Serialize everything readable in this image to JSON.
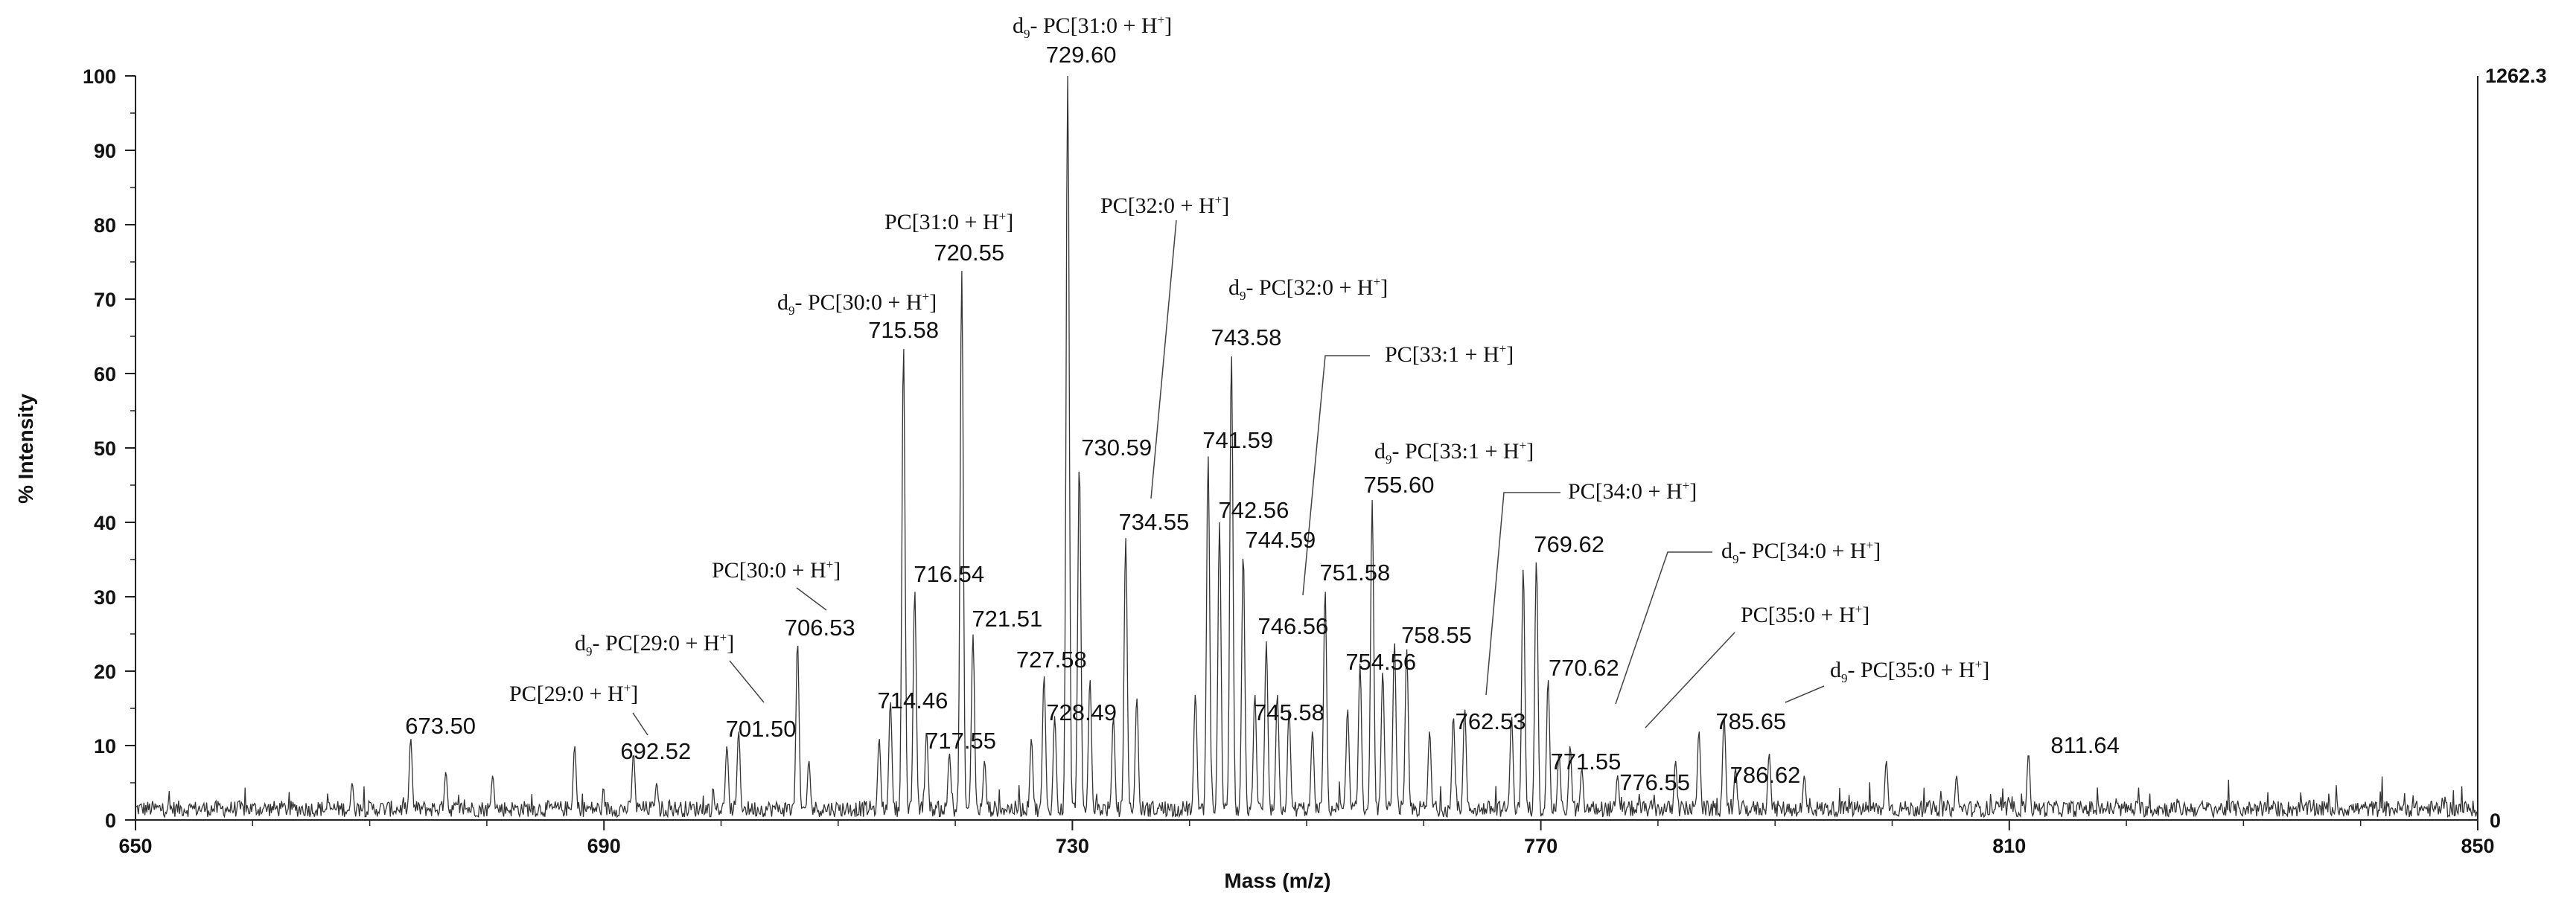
{
  "chart_data": {
    "type": "line",
    "subtype": "mass-spectrum",
    "title": "",
    "xlabel": "Mass (m/z)",
    "ylabel": "% Intensity",
    "xlim": [
      650,
      850
    ],
    "ylim": [
      0,
      100
    ],
    "x_ticks": [
      "650",
      "690",
      "730",
      "770",
      "810",
      "850"
    ],
    "y_ticks": [
      "0",
      "10",
      "20",
      "30",
      "40",
      "50",
      "60",
      "70",
      "80",
      "90",
      "100"
    ],
    "right_axis": {
      "max_label": "1262.3",
      "min_label": "0"
    },
    "line_color": "#333333",
    "grid": false,
    "peaks": [
      {
        "x": 673.5,
        "y": 11.0,
        "label": "673.50"
      },
      {
        "x": 692.52,
        "y": 9.0,
        "label": "692.52"
      },
      {
        "x": 701.5,
        "y": 12.0,
        "label": "701.50"
      },
      {
        "x": 706.53,
        "y": 24.0,
        "label": "706.53"
      },
      {
        "x": 714.46,
        "y": 16.0,
        "label": "714.46"
      },
      {
        "x": 715.58,
        "y": 64.0,
        "label": "715.58"
      },
      {
        "x": 716.54,
        "y": 31.0,
        "label": "716.54"
      },
      {
        "x": 717.55,
        "y": 12.0,
        "label": "717.55"
      },
      {
        "x": 720.55,
        "y": 74.0,
        "label": "720.55"
      },
      {
        "x": 721.51,
        "y": 25.0,
        "label": "721.51"
      },
      {
        "x": 727.58,
        "y": 19.5,
        "label": "727.58"
      },
      {
        "x": 728.49,
        "y": 14.0,
        "label": "728.49"
      },
      {
        "x": 729.6,
        "y": 100.0,
        "label": "729.60"
      },
      {
        "x": 730.59,
        "y": 48.0,
        "label": "730.59"
      },
      {
        "x": 734.55,
        "y": 38.0,
        "label": "734.55"
      },
      {
        "x": 741.59,
        "y": 49.0,
        "label": "741.59"
      },
      {
        "x": 742.56,
        "y": 40.0,
        "label": "742.56"
      },
      {
        "x": 743.58,
        "y": 63.0,
        "label": "743.58"
      },
      {
        "x": 744.59,
        "y": 36.0,
        "label": "744.59"
      },
      {
        "x": 745.58,
        "y": 17.0,
        "label": "745.58"
      },
      {
        "x": 746.56,
        "y": 24.0,
        "label": "746.56"
      },
      {
        "x": 751.58,
        "y": 31.0,
        "label": "751.58"
      },
      {
        "x": 754.56,
        "y": 21.0,
        "label": "754.56"
      },
      {
        "x": 755.6,
        "y": 43.0,
        "label": "755.60"
      },
      {
        "x": 758.55,
        "y": 23.0,
        "label": "758.55"
      },
      {
        "x": 762.53,
        "y": 14.0,
        "label": "762.53"
      },
      {
        "x": 769.62,
        "y": 35.0,
        "label": "769.62"
      },
      {
        "x": 770.62,
        "y": 19.0,
        "label": "770.62"
      },
      {
        "x": 771.55,
        "y": 9.0,
        "label": "771.55"
      },
      {
        "x": 776.55,
        "y": 6.0,
        "label": "776.55"
      },
      {
        "x": 785.65,
        "y": 14.0,
        "label": "785.65"
      },
      {
        "x": 786.62,
        "y": 7.0,
        "label": "786.62"
      },
      {
        "x": 811.64,
        "y": 9.0,
        "label": "811.64"
      }
    ],
    "minor_peaks": [
      {
        "x": 668.5,
        "y": 5.0
      },
      {
        "x": 676.5,
        "y": 6.5
      },
      {
        "x": 680.5,
        "y": 6.0
      },
      {
        "x": 687.5,
        "y": 10.0
      },
      {
        "x": 694.5,
        "y": 5.0
      },
      {
        "x": 700.5,
        "y": 10.0
      },
      {
        "x": 707.5,
        "y": 8.0
      },
      {
        "x": 713.5,
        "y": 11.0
      },
      {
        "x": 719.5,
        "y": 9.0
      },
      {
        "x": 722.5,
        "y": 8.0
      },
      {
        "x": 726.5,
        "y": 11.0
      },
      {
        "x": 731.5,
        "y": 19.0
      },
      {
        "x": 733.5,
        "y": 14.0
      },
      {
        "x": 735.5,
        "y": 16.5
      },
      {
        "x": 740.5,
        "y": 17.0
      },
      {
        "x": 747.5,
        "y": 17.0
      },
      {
        "x": 748.5,
        "y": 15.0
      },
      {
        "x": 750.5,
        "y": 12.0
      },
      {
        "x": 753.5,
        "y": 15.0
      },
      {
        "x": 756.5,
        "y": 20.0
      },
      {
        "x": 757.5,
        "y": 24.0
      },
      {
        "x": 760.5,
        "y": 12.0
      },
      {
        "x": 763.5,
        "y": 15.0
      },
      {
        "x": 767.5,
        "y": 14.0
      },
      {
        "x": 768.5,
        "y": 34.0
      },
      {
        "x": 772.5,
        "y": 10.0
      },
      {
        "x": 773.5,
        "y": 7.0
      },
      {
        "x": 781.5,
        "y": 8.0
      },
      {
        "x": 783.5,
        "y": 12.0
      },
      {
        "x": 789.5,
        "y": 9.0
      },
      {
        "x": 792.5,
        "y": 6.0
      },
      {
        "x": 799.5,
        "y": 8.0
      },
      {
        "x": 805.5,
        "y": 6.0
      }
    ],
    "annotations": [
      {
        "prefix": "d",
        "sub": "9",
        "text": "- PC[31:0 + H",
        "sup": "+",
        "end": "]",
        "peak": 729.6
      },
      {
        "prefix": "",
        "sub": "",
        "text": "PC[31:0 + H",
        "sup": "+",
        "end": "]",
        "peak": 720.55
      },
      {
        "prefix": "",
        "sub": "",
        "text": "PC[32:0 + H",
        "sup": "+",
        "end": "]",
        "peak": 734.55
      },
      {
        "prefix": "d",
        "sub": "9",
        "text": "- PC[30:0 + H",
        "sup": "+",
        "end": "]",
        "peak": 715.58
      },
      {
        "prefix": "d",
        "sub": "9",
        "text": "- PC[32:0 + H",
        "sup": "+",
        "end": "]",
        "peak": 743.58
      },
      {
        "prefix": "",
        "sub": "",
        "text": "PC[33:1 + H",
        "sup": "+",
        "end": "]",
        "peak": 746.56
      },
      {
        "prefix": "d",
        "sub": "9",
        "text": "- PC[33:1 + H",
        "sup": "+",
        "end": "]",
        "peak": 755.6
      },
      {
        "prefix": "",
        "sub": "",
        "text": "PC[34:0 + H",
        "sup": "+",
        "end": "]",
        "peak": 762.53
      },
      {
        "prefix": "",
        "sub": "",
        "text": "PC[30:0 + H",
        "sup": "+",
        "end": "]",
        "peak": 706.53
      },
      {
        "prefix": "d",
        "sub": "9",
        "text": "- PC[29:0 + H",
        "sup": "+",
        "end": "]",
        "peak": 701.5
      },
      {
        "prefix": "",
        "sub": "",
        "text": "PC[29:0 + H",
        "sup": "+",
        "end": "]",
        "peak": 692.52
      },
      {
        "prefix": "d",
        "sub": "9",
        "text": "- PC[34:0 + H",
        "sup": "+",
        "end": "]",
        "peak": 771.55
      },
      {
        "prefix": "",
        "sub": "",
        "text": "PC[35:0 + H",
        "sup": "+",
        "end": "]",
        "peak": 776.55
      },
      {
        "prefix": "d",
        "sub": "9",
        "text": "- PC[35:0 + H",
        "sup": "+",
        "end": "]",
        "peak": 785.65
      }
    ]
  }
}
